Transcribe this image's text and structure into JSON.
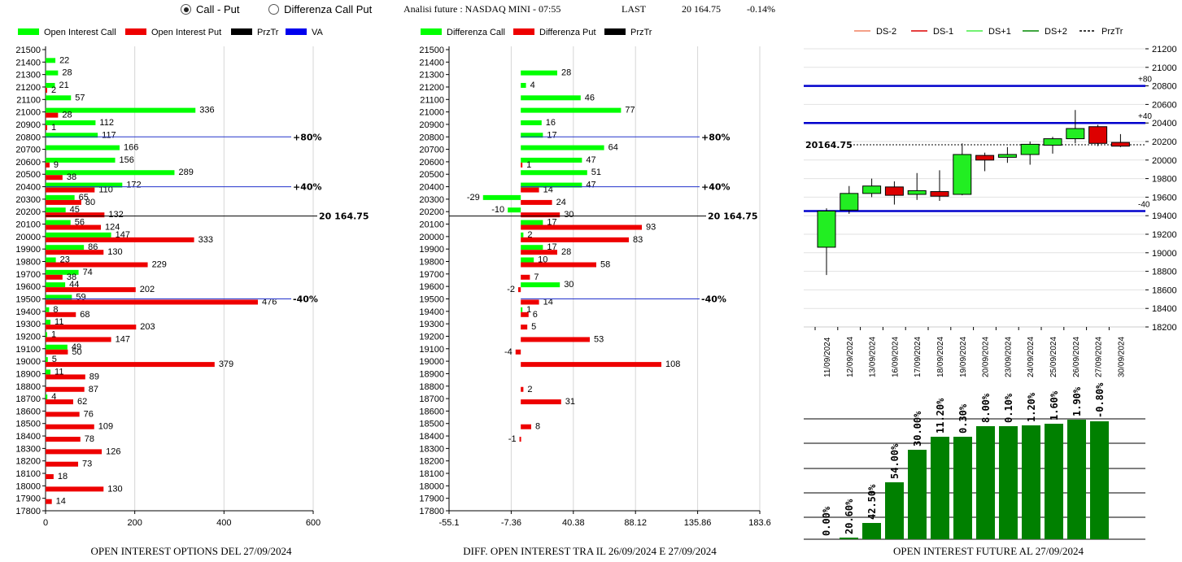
{
  "header": {
    "radio_call_put": "Call - Put",
    "radio_diff": "Differenza Call Put",
    "selected": "call_put",
    "title": "Analisi future : NASDAQ MINI - 07:55",
    "last_label": "LAST",
    "last_value": "20 164.75",
    "change": "-0.14%"
  },
  "captions": {
    "left": "OPEN INTEREST OPTIONS DEL 27/09/2024",
    "middle": "DIFF. OPEN INTEREST TRA IL 26/09/2024 E 27/09/2024",
    "right": "OPEN INTEREST FUTURE AL 27/09/2024"
  },
  "chart_data": [
    {
      "type": "bar",
      "orientation": "horizontal",
      "legend": [
        {
          "name": "Open Interest Call",
          "color": "#00ff00"
        },
        {
          "name": "Open Interest Put",
          "color": "#ee0000"
        },
        {
          "name": "PrzTr",
          "color": "#000000"
        },
        {
          "name": "VA",
          "color": "#0000ee"
        }
      ],
      "strikes": [
        21500,
        21400,
        21300,
        21200,
        21100,
        21000,
        20900,
        20800,
        20700,
        20600,
        20500,
        20400,
        20300,
        20200,
        20100,
        20000,
        19900,
        19800,
        19700,
        19600,
        19500,
        19400,
        19300,
        19200,
        19100,
        19000,
        18900,
        18800,
        18700,
        18600,
        18500,
        18400,
        18300,
        18200,
        18100,
        18000,
        17900,
        17800
      ],
      "series": [
        {
          "name": "Open Interest Call",
          "color": "#00ff00",
          "values": [
            0,
            22,
            28,
            21,
            57,
            336,
            112,
            117,
            166,
            156,
            289,
            172,
            65,
            45,
            56,
            147,
            86,
            23,
            74,
            44,
            59,
            8,
            11,
            1,
            49,
            5,
            11,
            0,
            4,
            0,
            0,
            0,
            0,
            0,
            0,
            0,
            0,
            0
          ]
        },
        {
          "name": "Open Interest Put",
          "color": "#ee0000",
          "values": [
            0,
            0,
            0,
            2,
            0,
            28,
            1,
            0,
            0,
            9,
            38,
            110,
            80,
            132,
            124,
            333,
            130,
            229,
            38,
            202,
            476,
            68,
            203,
            147,
            50,
            379,
            89,
            87,
            62,
            76,
            109,
            78,
            126,
            73,
            18,
            130,
            14,
            0
          ]
        }
      ],
      "xlim": [
        0,
        600
      ],
      "xticks": [
        "0",
        "200",
        "400",
        "600"
      ],
      "price_line": {
        "value": 20164.75,
        "label": "20 164.75"
      },
      "va_lines": [
        {
          "strike": 20800,
          "label": "+80%"
        },
        {
          "strike": 20400,
          "label": "+40%"
        },
        {
          "strike": 19500,
          "label": "-40%"
        }
      ]
    },
    {
      "type": "bar",
      "orientation": "horizontal",
      "legend": [
        {
          "name": "Differenza Call",
          "color": "#00ff00"
        },
        {
          "name": "Differenza Put",
          "color": "#ee0000"
        },
        {
          "name": "PrzTr",
          "color": "#000000"
        }
      ],
      "strikes": [
        21500,
        21400,
        21300,
        21200,
        21100,
        21000,
        20900,
        20800,
        20700,
        20600,
        20500,
        20400,
        20300,
        20200,
        20100,
        20000,
        19900,
        19800,
        19700,
        19600,
        19500,
        19400,
        19300,
        19200,
        19100,
        19000,
        18900,
        18800,
        18700,
        18600,
        18500,
        18400,
        18300,
        18200,
        18100,
        18000,
        17900,
        17800
      ],
      "series": [
        {
          "name": "Differenza Call",
          "color": "#00ff00",
          "values": [
            null,
            null,
            28,
            4,
            46,
            77,
            16,
            17,
            64,
            47,
            51,
            47,
            -29,
            -10,
            17,
            2,
            17,
            10,
            null,
            30,
            null,
            1,
            null,
            null,
            null,
            null,
            null,
            null,
            null,
            null,
            null,
            null,
            null,
            null,
            null,
            null,
            null,
            null
          ]
        },
        {
          "name": "Differenza Put",
          "color": "#ee0000",
          "values": [
            null,
            null,
            null,
            null,
            null,
            null,
            null,
            null,
            null,
            1,
            null,
            14,
            24,
            30,
            93,
            83,
            28,
            58,
            7,
            -2,
            14,
            6,
            5,
            53,
            -4,
            108,
            null,
            2,
            31,
            null,
            8,
            -1,
            null,
            null,
            null,
            null,
            null,
            null
          ]
        }
      ],
      "xlim": [
        -55.1,
        183.6
      ],
      "xticks": [
        "-55.1",
        "-7.36",
        "40.38",
        "88.12",
        "135.86",
        "183.6"
      ],
      "price_line": {
        "value": 20164.75,
        "label": "20 164.75"
      },
      "va_lines": [
        {
          "strike": 20800,
          "label": "+80%"
        },
        {
          "strike": 20400,
          "label": "+40%"
        },
        {
          "strike": 19500,
          "label": "-40%"
        }
      ]
    },
    {
      "type": "candlestick",
      "legend": [
        {
          "name": "DS-2",
          "color": "#f08060",
          "dash": false
        },
        {
          "name": "DS-1",
          "color": "#dd0000",
          "dash": false
        },
        {
          "name": "DS+1",
          "color": "#44ee44",
          "dash": false
        },
        {
          "name": "DS+2",
          "color": "#008800",
          "dash": false
        },
        {
          "name": "PrzTr",
          "color": "#000000",
          "dash": true
        }
      ],
      "dates": [
        "11/09/2024",
        "12/09/2024",
        "13/09/2024",
        "16/09/2024",
        "17/09/2024",
        "18/09/2024",
        "19/09/2024",
        "20/09/2024",
        "23/09/2024",
        "24/09/2024",
        "25/09/2024",
        "26/09/2024",
        "27/09/2024",
        "30/09/2024"
      ],
      "candles": [
        {
          "o": 19060,
          "h": 19480,
          "l": 18760,
          "c": 19450
        },
        {
          "o": 19460,
          "h": 19720,
          "l": 19420,
          "c": 19640
        },
        {
          "o": 19640,
          "h": 19800,
          "l": 19600,
          "c": 19720
        },
        {
          "o": 19710,
          "h": 19770,
          "l": 19520,
          "c": 19620
        },
        {
          "o": 19630,
          "h": 19860,
          "l": 19570,
          "c": 19670
        },
        {
          "o": 19660,
          "h": 19890,
          "l": 19560,
          "c": 19610
        },
        {
          "o": 19630,
          "h": 20180,
          "l": 19620,
          "c": 20060
        },
        {
          "o": 20050,
          "h": 20080,
          "l": 19880,
          "c": 20000
        },
        {
          "o": 20030,
          "h": 20140,
          "l": 19970,
          "c": 20060
        },
        {
          "o": 20060,
          "h": 20200,
          "l": 19950,
          "c": 20170
        },
        {
          "o": 20160,
          "h": 20250,
          "l": 20070,
          "c": 20230
        },
        {
          "o": 20230,
          "h": 20540,
          "l": 20180,
          "c": 20340
        },
        {
          "o": 20360,
          "h": 20380,
          "l": 20150,
          "c": 20180
        },
        {
          "o": 20190,
          "h": 20280,
          "l": 20140,
          "c": 20150
        }
      ],
      "ylim": [
        18200,
        21200
      ],
      "yticks": [
        18200,
        18400,
        18600,
        18800,
        19000,
        19200,
        19400,
        19600,
        19800,
        20000,
        20200,
        20400,
        20600,
        20800,
        21000,
        21200
      ],
      "price_line": {
        "value": 20164.75,
        "label": "20164.75"
      },
      "levels": [
        {
          "value": 20800,
          "label": "+80"
        },
        {
          "value": 20400,
          "label": "+40"
        },
        {
          "value": 19450,
          "label": "-40"
        }
      ]
    },
    {
      "type": "bar",
      "values": [
        0.0,
        20.6,
        42.5,
        54.0,
        30.0,
        11.2,
        0.3,
        8.0,
        0.1,
        1.2,
        1.6,
        1.9,
        -0.8
      ],
      "labels": [
        "0.00%",
        "20.60%",
        "42.50%",
        "54.00%",
        "30.00%",
        "11.20%",
        "0.30%",
        "8.00%",
        "0.10%",
        "1.20%",
        "1.60%",
        "1.90%",
        "-0.80%"
      ],
      "cumulative_heights": [
        0,
        2,
        20,
        70,
        110,
        126,
        126,
        139,
        139,
        140,
        142,
        147,
        145
      ],
      "color": "#008000"
    }
  ]
}
